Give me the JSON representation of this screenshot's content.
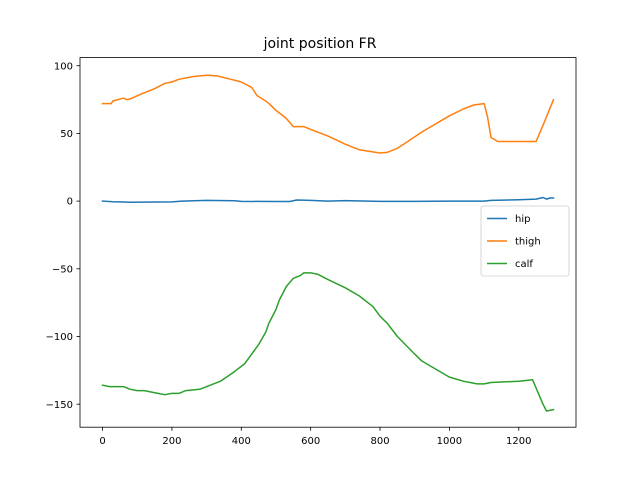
{
  "chart_data": {
    "type": "line",
    "title": "joint position FR",
    "xlabel": "",
    "ylabel": "",
    "xlim": [
      -65,
      1365
    ],
    "ylim": [
      -167,
      106
    ],
    "xticks": [
      0,
      200,
      400,
      600,
      800,
      1000,
      1200
    ],
    "yticks": [
      -150,
      -100,
      -50,
      0,
      50,
      100
    ],
    "xtick_labels": [
      "0",
      "200",
      "400",
      "600",
      "800",
      "1000",
      "1200"
    ],
    "ytick_labels": [
      "−150",
      "−100",
      "−50",
      "0",
      "50",
      "100"
    ],
    "grid": false,
    "legend": {
      "placement": "center-right",
      "entries": [
        "hip",
        "thigh",
        "calf"
      ]
    },
    "series": [
      {
        "name": "hip",
        "color": "#1f77b4",
        "points": [
          [
            0,
            0
          ],
          [
            30,
            -0.5
          ],
          [
            80,
            -0.8
          ],
          [
            200,
            -0.6
          ],
          [
            230,
            0
          ],
          [
            300,
            0.5
          ],
          [
            380,
            0.3
          ],
          [
            400,
            -0.2
          ],
          [
            500,
            -0.3
          ],
          [
            540,
            -0.3
          ],
          [
            560,
            0.8
          ],
          [
            600,
            0.5
          ],
          [
            650,
            0
          ],
          [
            700,
            0.4
          ],
          [
            800,
            -0.2
          ],
          [
            900,
            -0.2
          ],
          [
            1000,
            0
          ],
          [
            1100,
            0
          ],
          [
            1120,
            0.5
          ],
          [
            1200,
            1.0
          ],
          [
            1250,
            1.5
          ],
          [
            1270,
            2.7
          ],
          [
            1280,
            1.5
          ],
          [
            1290,
            2.3
          ],
          [
            1300,
            2.3
          ]
        ]
      },
      {
        "name": "thigh",
        "color": "#ff7f0e",
        "points": [
          [
            0,
            72
          ],
          [
            25,
            72
          ],
          [
            30,
            74
          ],
          [
            60,
            76
          ],
          [
            70,
            75
          ],
          [
            80,
            75.5
          ],
          [
            110,
            79
          ],
          [
            150,
            83
          ],
          [
            180,
            87
          ],
          [
            200,
            88
          ],
          [
            220,
            90
          ],
          [
            260,
            92
          ],
          [
            300,
            93
          ],
          [
            330,
            92.5
          ],
          [
            370,
            90
          ],
          [
            400,
            88
          ],
          [
            430,
            84
          ],
          [
            445,
            78
          ],
          [
            470,
            74
          ],
          [
            480,
            72
          ],
          [
            500,
            67
          ],
          [
            530,
            61
          ],
          [
            550,
            55
          ],
          [
            560,
            55
          ],
          [
            580,
            55
          ],
          [
            600,
            53
          ],
          [
            650,
            48
          ],
          [
            700,
            42
          ],
          [
            740,
            38
          ],
          [
            800,
            35.5
          ],
          [
            820,
            36
          ],
          [
            850,
            39
          ],
          [
            880,
            44
          ],
          [
            920,
            51
          ],
          [
            1000,
            63
          ],
          [
            1040,
            68
          ],
          [
            1070,
            71
          ],
          [
            1100,
            72
          ],
          [
            1110,
            62
          ],
          [
            1120,
            47
          ],
          [
            1140,
            44
          ],
          [
            1160,
            44
          ],
          [
            1250,
            44
          ],
          [
            1270,
            56
          ],
          [
            1300,
            75
          ]
        ]
      },
      {
        "name": "calf",
        "color": "#2ca02c",
        "points": [
          [
            0,
            -136
          ],
          [
            20,
            -137
          ],
          [
            60,
            -137
          ],
          [
            80,
            -139
          ],
          [
            100,
            -140
          ],
          [
            120,
            -140
          ],
          [
            160,
            -142
          ],
          [
            180,
            -143
          ],
          [
            200,
            -142
          ],
          [
            220,
            -142
          ],
          [
            240,
            -140
          ],
          [
            280,
            -139
          ],
          [
            340,
            -133
          ],
          [
            380,
            -126
          ],
          [
            410,
            -120
          ],
          [
            430,
            -113
          ],
          [
            450,
            -106
          ],
          [
            470,
            -97
          ],
          [
            480,
            -90
          ],
          [
            500,
            -80
          ],
          [
            510,
            -73
          ],
          [
            530,
            -63
          ],
          [
            550,
            -57
          ],
          [
            570,
            -55
          ],
          [
            580,
            -53
          ],
          [
            600,
            -53
          ],
          [
            620,
            -54
          ],
          [
            650,
            -58
          ],
          [
            700,
            -64
          ],
          [
            740,
            -70
          ],
          [
            780,
            -78
          ],
          [
            800,
            -85
          ],
          [
            820,
            -90
          ],
          [
            850,
            -100
          ],
          [
            900,
            -113
          ],
          [
            920,
            -118
          ],
          [
            960,
            -124
          ],
          [
            1000,
            -130
          ],
          [
            1040,
            -133
          ],
          [
            1080,
            -135
          ],
          [
            1100,
            -135
          ],
          [
            1120,
            -134
          ],
          [
            1200,
            -133
          ],
          [
            1240,
            -132
          ],
          [
            1270,
            -150
          ],
          [
            1280,
            -155
          ],
          [
            1300,
            -154
          ]
        ]
      }
    ]
  }
}
